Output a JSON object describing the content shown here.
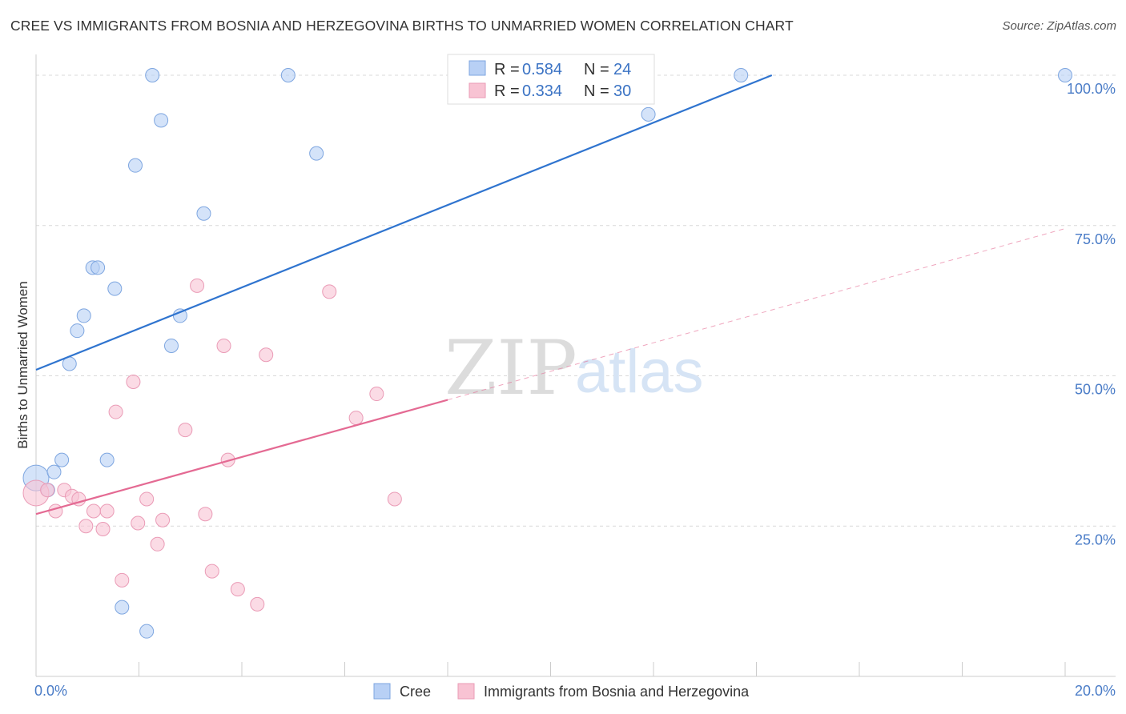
{
  "title": "CREE VS IMMIGRANTS FROM BOSNIA AND HERZEGOVINA BIRTHS TO UNMARRIED WOMEN CORRELATION CHART",
  "source": "Source: ZipAtlas.com",
  "watermark": {
    "zip": "ZIP",
    "atlas": "atlas"
  },
  "colors": {
    "cree_fill": "#b8d0f5",
    "cree_stroke": "#7ea6e0",
    "cree_line": "#2f74cf",
    "bosnia_fill": "#f8c3d3",
    "bosnia_stroke": "#ea9bb6",
    "bosnia_line": "#e46a93",
    "grid": "#d9d9d9",
    "tick_text": "#4a7cc7"
  },
  "legend": {
    "rows": [
      {
        "r_label": "R = ",
        "r_value": "0.584",
        "n_label": "N = ",
        "n_value": "24"
      },
      {
        "r_label": "R = ",
        "r_value": "0.334",
        "n_label": "N = ",
        "n_value": "30"
      }
    ]
  },
  "chart_data": {
    "type": "scatter",
    "title": "CREE VS IMMIGRANTS FROM BOSNIA AND HERZEGOVINA BIRTHS TO UNMARRIED WOMEN CORRELATION CHART",
    "xlabel": "",
    "ylabel": "Births to Unmarried Women",
    "xlim": [
      0,
      20
    ],
    "ylim": [
      0,
      102
    ],
    "x_tick_labels": [
      "0.0%",
      "20.0%"
    ],
    "y_ticks": [
      25,
      50,
      75,
      100
    ],
    "y_tick_labels": [
      "25.0%",
      "50.0%",
      "75.0%",
      "100.0%"
    ],
    "grid": true,
    "legend_position": "top-center",
    "series": [
      {
        "name": "Cree",
        "points": [
          [
            0.0,
            33.0
          ],
          [
            0.23,
            31.0
          ],
          [
            0.35,
            34.0
          ],
          [
            0.5,
            36.0
          ],
          [
            0.65,
            52.0
          ],
          [
            0.8,
            57.5
          ],
          [
            0.93,
            60.0
          ],
          [
            1.1,
            68.0
          ],
          [
            1.2,
            68.0
          ],
          [
            1.38,
            36.0
          ],
          [
            1.53,
            64.5
          ],
          [
            1.67,
            11.5
          ],
          [
            1.93,
            85.0
          ],
          [
            2.15,
            7.5
          ],
          [
            2.26,
            100.0
          ],
          [
            2.43,
            92.5
          ],
          [
            2.63,
            55.0
          ],
          [
            2.8,
            60.0
          ],
          [
            3.26,
            77.0
          ],
          [
            4.9,
            100.0
          ],
          [
            5.45,
            87.0
          ],
          [
            11.9,
            93.5
          ],
          [
            13.7,
            100.0
          ],
          [
            20.0,
            100.0
          ]
        ],
        "trend": {
          "x": [
            0.0,
            14.3
          ],
          "y": [
            51.0,
            100.0
          ]
        }
      },
      {
        "name": "Immigrants from Bosnia and Herzegovina",
        "points": [
          [
            0.0,
            30.5
          ],
          [
            0.22,
            31.0
          ],
          [
            0.38,
            27.5
          ],
          [
            0.55,
            31.0
          ],
          [
            0.7,
            30.0
          ],
          [
            0.83,
            29.5
          ],
          [
            0.97,
            25.0
          ],
          [
            1.12,
            27.5
          ],
          [
            1.3,
            24.5
          ],
          [
            1.38,
            27.5
          ],
          [
            1.55,
            44.0
          ],
          [
            1.67,
            16.0
          ],
          [
            1.89,
            49.0
          ],
          [
            1.98,
            25.5
          ],
          [
            2.15,
            29.5
          ],
          [
            2.36,
            22.0
          ],
          [
            2.46,
            26.0
          ],
          [
            2.9,
            41.0
          ],
          [
            3.13,
            65.0
          ],
          [
            3.29,
            27.0
          ],
          [
            3.42,
            17.5
          ],
          [
            3.65,
            55.0
          ],
          [
            3.73,
            36.0
          ],
          [
            3.92,
            14.5
          ],
          [
            4.3,
            12.0
          ],
          [
            4.47,
            53.5
          ],
          [
            5.7,
            64.0
          ],
          [
            6.22,
            43.0
          ],
          [
            6.62,
            47.0
          ],
          [
            6.97,
            29.5
          ]
        ],
        "trend": {
          "x": [
            0.0,
            8.0
          ],
          "y": [
            27.0,
            46.0
          ]
        },
        "trend_extension": {
          "x": [
            8.0,
            20.0
          ],
          "y": [
            46.0,
            74.5
          ]
        }
      }
    ]
  },
  "bottom_legend": {
    "items": [
      "Cree",
      "Immigrants from Bosnia and Herzegovina"
    ]
  }
}
